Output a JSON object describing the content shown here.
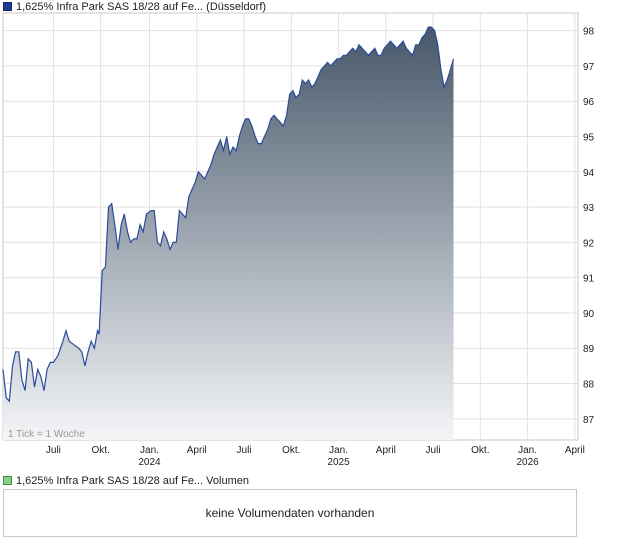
{
  "legend": {
    "price_label": "1,625% Infra Park SAS 18/28 auf Fe... (Düsseldorf)",
    "volume_label": "1,625% Infra Park SAS 18/28 auf Fe... Volumen"
  },
  "tick_note": "1 Tick = 1 Woche",
  "volume_message": "keine Volumendaten vorhanden",
  "colors": {
    "line": "#2b4a9a",
    "fill_top": "#47586a",
    "fill_bottom": "#f4f5f7"
  },
  "chart_data": {
    "type": "area",
    "ylim": [
      86.4,
      98.5
    ],
    "y_ticks": [
      87,
      88,
      89,
      90,
      91,
      92,
      93,
      94,
      95,
      96,
      97,
      98
    ],
    "x_ticks": [
      {
        "label": "Juli",
        "sub": "",
        "x": 4.7
      },
      {
        "label": "Okt.",
        "sub": "",
        "x": 7.7
      },
      {
        "label": "Jan.",
        "sub": "2024",
        "x": 10.8
      },
      {
        "label": "April",
        "sub": "",
        "x": 13.8
      },
      {
        "label": "Juli",
        "sub": "",
        "x": 16.8
      },
      {
        "label": "Okt.",
        "sub": "",
        "x": 19.8
      },
      {
        "label": "Jan.",
        "sub": "2025",
        "x": 22.8
      },
      {
        "label": "April",
        "sub": "",
        "x": 25.8
      },
      {
        "label": "Juli",
        "sub": "",
        "x": 28.8
      },
      {
        "label": "Okt.",
        "sub": "",
        "x": 31.8
      },
      {
        "label": "Jan.",
        "sub": "2026",
        "x": 34.8
      },
      {
        "label": "April",
        "sub": "",
        "x": 37.8
      }
    ],
    "xlim": [
      1.5,
      38.0
    ],
    "points": [
      [
        1.5,
        88.4
      ],
      [
        1.7,
        87.6
      ],
      [
        1.9,
        87.5
      ],
      [
        2.1,
        88.5
      ],
      [
        2.3,
        88.9
      ],
      [
        2.5,
        88.9
      ],
      [
        2.7,
        88.1
      ],
      [
        2.9,
        87.8
      ],
      [
        3.1,
        88.7
      ],
      [
        3.3,
        88.6
      ],
      [
        3.5,
        87.9
      ],
      [
        3.7,
        88.4
      ],
      [
        3.9,
        88.2
      ],
      [
        4.1,
        87.8
      ],
      [
        4.3,
        88.4
      ],
      [
        4.5,
        88.6
      ],
      [
        4.7,
        88.6
      ],
      [
        5.0,
        88.8
      ],
      [
        5.3,
        89.2
      ],
      [
        5.5,
        89.5
      ],
      [
        5.7,
        89.2
      ],
      [
        6.0,
        89.1
      ],
      [
        6.3,
        89.0
      ],
      [
        6.5,
        88.9
      ],
      [
        6.7,
        88.5
      ],
      [
        6.9,
        88.9
      ],
      [
        7.1,
        89.2
      ],
      [
        7.3,
        89.0
      ],
      [
        7.5,
        89.5
      ],
      [
        7.6,
        89.4
      ],
      [
        7.8,
        91.2
      ],
      [
        8.0,
        91.3
      ],
      [
        8.2,
        93.0
      ],
      [
        8.4,
        93.1
      ],
      [
        8.6,
        92.5
      ],
      [
        8.8,
        91.8
      ],
      [
        9.0,
        92.5
      ],
      [
        9.2,
        92.8
      ],
      [
        9.4,
        92.3
      ],
      [
        9.6,
        92.0
      ],
      [
        9.8,
        92.1
      ],
      [
        10.0,
        92.1
      ],
      [
        10.2,
        92.5
      ],
      [
        10.4,
        92.3
      ],
      [
        10.6,
        92.8
      ],
      [
        10.9,
        92.9
      ],
      [
        11.1,
        92.9
      ],
      [
        11.3,
        92.0
      ],
      [
        11.5,
        91.9
      ],
      [
        11.7,
        92.3
      ],
      [
        11.9,
        92.1
      ],
      [
        12.1,
        91.8
      ],
      [
        12.3,
        92.0
      ],
      [
        12.5,
        92.0
      ],
      [
        12.7,
        92.9
      ],
      [
        12.9,
        92.8
      ],
      [
        13.1,
        92.7
      ],
      [
        13.3,
        93.3
      ],
      [
        13.5,
        93.5
      ],
      [
        13.7,
        93.7
      ],
      [
        13.9,
        94.0
      ],
      [
        14.1,
        93.9
      ],
      [
        14.3,
        93.8
      ],
      [
        14.5,
        94.0
      ],
      [
        14.7,
        94.2
      ],
      [
        14.9,
        94.5
      ],
      [
        15.1,
        94.7
      ],
      [
        15.3,
        94.9
      ],
      [
        15.5,
        94.6
      ],
      [
        15.7,
        95.0
      ],
      [
        15.9,
        94.5
      ],
      [
        16.1,
        94.7
      ],
      [
        16.3,
        94.6
      ],
      [
        16.5,
        95.0
      ],
      [
        16.7,
        95.3
      ],
      [
        16.9,
        95.5
      ],
      [
        17.1,
        95.5
      ],
      [
        17.3,
        95.3
      ],
      [
        17.5,
        95.0
      ],
      [
        17.7,
        94.8
      ],
      [
        17.9,
        94.8
      ],
      [
        18.1,
        95.0
      ],
      [
        18.3,
        95.2
      ],
      [
        18.5,
        95.5
      ],
      [
        18.7,
        95.6
      ],
      [
        18.9,
        95.5
      ],
      [
        19.1,
        95.4
      ],
      [
        19.3,
        95.3
      ],
      [
        19.5,
        95.6
      ],
      [
        19.7,
        96.2
      ],
      [
        19.9,
        96.3
      ],
      [
        20.1,
        96.1
      ],
      [
        20.3,
        96.2
      ],
      [
        20.5,
        96.6
      ],
      [
        20.7,
        96.5
      ],
      [
        20.9,
        96.6
      ],
      [
        21.1,
        96.4
      ],
      [
        21.3,
        96.5
      ],
      [
        21.5,
        96.7
      ],
      [
        21.7,
        96.9
      ],
      [
        21.9,
        97.0
      ],
      [
        22.1,
        97.1
      ],
      [
        22.3,
        97.0
      ],
      [
        22.5,
        97.1
      ],
      [
        22.7,
        97.2
      ],
      [
        22.9,
        97.2
      ],
      [
        23.1,
        97.3
      ],
      [
        23.3,
        97.3
      ],
      [
        23.5,
        97.4
      ],
      [
        23.7,
        97.5
      ],
      [
        23.9,
        97.4
      ],
      [
        24.1,
        97.6
      ],
      [
        24.3,
        97.5
      ],
      [
        24.5,
        97.4
      ],
      [
        24.7,
        97.3
      ],
      [
        24.9,
        97.4
      ],
      [
        25.1,
        97.5
      ],
      [
        25.3,
        97.3
      ],
      [
        25.5,
        97.3
      ],
      [
        25.7,
        97.5
      ],
      [
        25.9,
        97.6
      ],
      [
        26.1,
        97.7
      ],
      [
        26.3,
        97.6
      ],
      [
        26.5,
        97.5
      ],
      [
        26.7,
        97.6
      ],
      [
        26.9,
        97.7
      ],
      [
        27.1,
        97.5
      ],
      [
        27.3,
        97.4
      ],
      [
        27.5,
        97.3
      ],
      [
        27.7,
        97.6
      ],
      [
        27.9,
        97.6
      ],
      [
        28.1,
        97.8
      ],
      [
        28.3,
        97.9
      ],
      [
        28.5,
        98.1
      ],
      [
        28.7,
        98.1
      ],
      [
        28.9,
        98.0
      ],
      [
        29.1,
        97.6
      ],
      [
        29.3,
        96.9
      ],
      [
        29.5,
        96.4
      ],
      [
        29.7,
        96.6
      ],
      [
        29.9,
        96.9
      ],
      [
        30.1,
        97.2
      ]
    ]
  }
}
